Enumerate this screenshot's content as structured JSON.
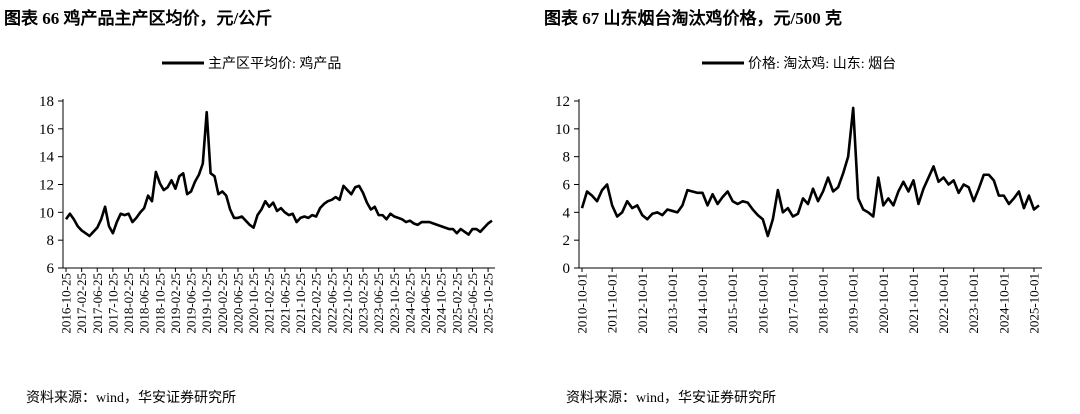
{
  "chart_data": [
    {
      "type": "line",
      "title": "图表 66 鸡产品主产区均价，元/公斤",
      "source": "资料来源：wind，华安证券研究所",
      "categories": [
        "2016-10-25",
        null,
        null,
        null,
        "2017-02-25",
        null,
        null,
        null,
        "2017-06-25",
        null,
        null,
        null,
        "2017-10-25",
        null,
        null,
        null,
        "2018-02-25",
        null,
        null,
        null,
        "2018-06-25",
        null,
        null,
        null,
        "2018-10-25",
        null,
        null,
        null,
        "2019-02-25",
        null,
        null,
        null,
        "2019-06-25",
        null,
        null,
        null,
        "2019-10-25",
        null,
        null,
        null,
        "2020-02-25",
        null,
        null,
        null,
        "2020-06-25",
        null,
        null,
        null,
        "2020-10-25",
        null,
        null,
        null,
        "2021-02-25",
        null,
        null,
        null,
        "2021-06-25",
        null,
        null,
        null,
        "2021-10-25",
        null,
        null,
        null,
        "2022-02-25",
        null,
        null,
        null,
        "2022-06-25",
        null,
        null,
        null,
        "2022-10-25",
        null,
        null,
        null,
        "2023-02-25",
        null,
        null,
        null,
        "2023-06-25",
        null,
        null,
        null,
        "2023-10-25",
        null,
        null,
        null,
        "2024-02-25",
        null,
        null,
        null,
        "2024-06-25",
        null,
        null,
        null,
        "2024-10-25",
        null,
        null,
        null,
        "2025-02-25",
        null,
        null,
        null,
        "2025-06-25",
        null,
        null,
        null,
        "2025-10-25",
        null
      ],
      "series": [
        {
          "name": "主产区平均价: 鸡产品",
          "color": "#000000",
          "values": [
            9.5,
            9.9,
            9.5,
            9.0,
            8.7,
            8.5,
            8.3,
            8.6,
            8.9,
            9.5,
            10.4,
            9.0,
            8.5,
            9.3,
            9.9,
            9.8,
            9.9,
            9.3,
            9.6,
            10.0,
            10.3,
            11.2,
            10.8,
            12.9,
            12.1,
            11.6,
            11.8,
            12.3,
            11.7,
            12.6,
            12.8,
            11.3,
            11.5,
            12.2,
            12.7,
            13.5,
            17.2,
            12.8,
            12.6,
            11.3,
            11.5,
            11.2,
            10.2,
            9.6,
            9.6,
            9.7,
            9.4,
            9.1,
            8.9,
            9.8,
            10.2,
            10.8,
            10.4,
            10.7,
            10.1,
            10.3,
            10.0,
            9.8,
            9.9,
            9.3,
            9.6,
            9.7,
            9.6,
            9.8,
            9.7,
            10.3,
            10.6,
            10.8,
            10.9,
            11.1,
            10.9,
            11.9,
            11.6,
            11.3,
            11.8,
            11.9,
            11.4,
            10.7,
            10.2,
            10.4,
            9.8,
            9.8,
            9.5,
            9.9,
            9.7,
            9.6,
            9.5,
            9.3,
            9.4,
            9.2,
            9.1,
            9.3,
            9.3,
            9.3,
            9.2,
            9.1,
            9.0,
            8.9,
            8.8,
            8.8,
            8.5,
            8.8,
            8.6,
            8.4,
            8.8,
            8.8,
            8.6,
            8.9,
            9.2,
            9.4
          ]
        }
      ],
      "ylim": [
        6,
        18
      ],
      "yticks": [
        6,
        8,
        10,
        12,
        14,
        16,
        18
      ]
    },
    {
      "type": "line",
      "title": "图表 67 山东烟台淘汰鸡价格，元/500 克",
      "source": "资料来源：wind，华安证券研究所",
      "categories": [
        "2010-10-01",
        null,
        null,
        null,
        null,
        null,
        "2011-10-01",
        null,
        null,
        null,
        null,
        null,
        "2012-10-01",
        null,
        null,
        null,
        null,
        null,
        "2013-10-01",
        null,
        null,
        null,
        null,
        null,
        "2014-10-01",
        null,
        null,
        null,
        null,
        null,
        "2015-10-01",
        null,
        null,
        null,
        null,
        null,
        "2016-10-01",
        null,
        null,
        null,
        null,
        null,
        "2017-10-01",
        null,
        null,
        null,
        null,
        null,
        "2018-10-01",
        null,
        null,
        null,
        null,
        null,
        "2019-10-01",
        null,
        null,
        null,
        null,
        null,
        "2020-10-01",
        null,
        null,
        null,
        null,
        null,
        "2021-10-01",
        null,
        null,
        null,
        null,
        null,
        "2022-10-01",
        null,
        null,
        null,
        null,
        null,
        "2023-10-01",
        null,
        null,
        null,
        null,
        null,
        "2024-10-01",
        null,
        null,
        null,
        null,
        null,
        "2025-10-01",
        null
      ],
      "series": [
        {
          "name": "价格: 淘汰鸡: 山东: 烟台",
          "color": "#000000",
          "values": [
            4.3,
            5.5,
            5.2,
            4.8,
            5.6,
            6.0,
            4.5,
            3.7,
            4.0,
            4.8,
            4.3,
            4.5,
            3.8,
            3.5,
            3.9,
            4.0,
            3.8,
            4.2,
            4.1,
            4.0,
            4.5,
            5.6,
            5.5,
            5.4,
            5.4,
            4.5,
            5.3,
            4.6,
            5.1,
            5.5,
            4.8,
            4.6,
            4.8,
            4.7,
            4.2,
            3.8,
            3.5,
            2.3,
            3.5,
            5.6,
            4.0,
            4.3,
            3.7,
            3.9,
            5.0,
            4.6,
            5.7,
            4.8,
            5.5,
            6.5,
            5.5,
            5.8,
            6.8,
            8.0,
            11.5,
            5.0,
            4.2,
            4.0,
            3.7,
            6.5,
            4.5,
            5.0,
            4.5,
            5.5,
            6.2,
            5.5,
            6.3,
            4.6,
            5.7,
            6.5,
            7.3,
            6.2,
            6.5,
            6.0,
            6.3,
            5.4,
            6.0,
            5.8,
            4.8,
            5.7,
            6.7,
            6.7,
            6.3,
            5.2,
            5.2,
            4.6,
            5.0,
            5.5,
            4.3,
            5.2,
            4.2,
            4.5
          ]
        }
      ],
      "ylim": [
        0,
        12
      ],
      "yticks": [
        0,
        2,
        4,
        6,
        8,
        10,
        12
      ]
    }
  ]
}
